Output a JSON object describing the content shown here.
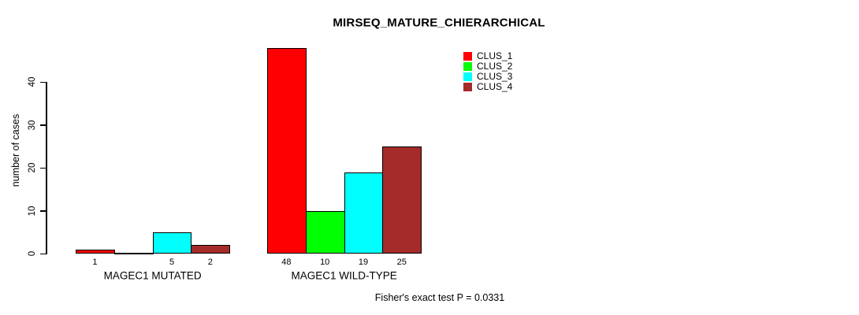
{
  "chart_data": {
    "type": "bar",
    "title": "MIRSEQ_MATURE_CHIERARCHICAL",
    "ylabel": "number of cases",
    "xlabel": "",
    "yticks": [
      0,
      10,
      20,
      30,
      40
    ],
    "ylim": [
      0,
      48
    ],
    "grid": false,
    "legend_position": "top-right-inside",
    "series": [
      "CLUS_1",
      "CLUS_2",
      "CLUS_3",
      "CLUS_4"
    ],
    "series_colors": [
      "#FF0000",
      "#00FF00",
      "#00FFFF",
      "#A52A2A"
    ],
    "groups": [
      {
        "label": "MAGEC1 MUTATED",
        "values": [
          1,
          0,
          5,
          2
        ]
      },
      {
        "label": "MAGEC1 WILD-TYPE",
        "values": [
          48,
          10,
          19,
          25
        ]
      }
    ],
    "bar_value_labels": {
      "MAGEC1 MUTATED": [
        "1",
        "",
        "5",
        "2"
      ],
      "MAGEC1 WILD-TYPE": [
        "48",
        "10",
        "19",
        "25"
      ]
    },
    "annotation": "Fisher's exact test P = 0.0331"
  },
  "legend": [
    {
      "label": "CLUS_1",
      "color": "#FF0000"
    },
    {
      "label": "CLUS_2",
      "color": "#00FF00"
    },
    {
      "label": "CLUS_3",
      "color": "#00FFFF"
    },
    {
      "label": "CLUS_4",
      "color": "#A52A2A"
    }
  ],
  "colors": {
    "background": "#FFFFFF",
    "axis": "#000000",
    "bar_border": "#000000",
    "text": "#000000"
  }
}
